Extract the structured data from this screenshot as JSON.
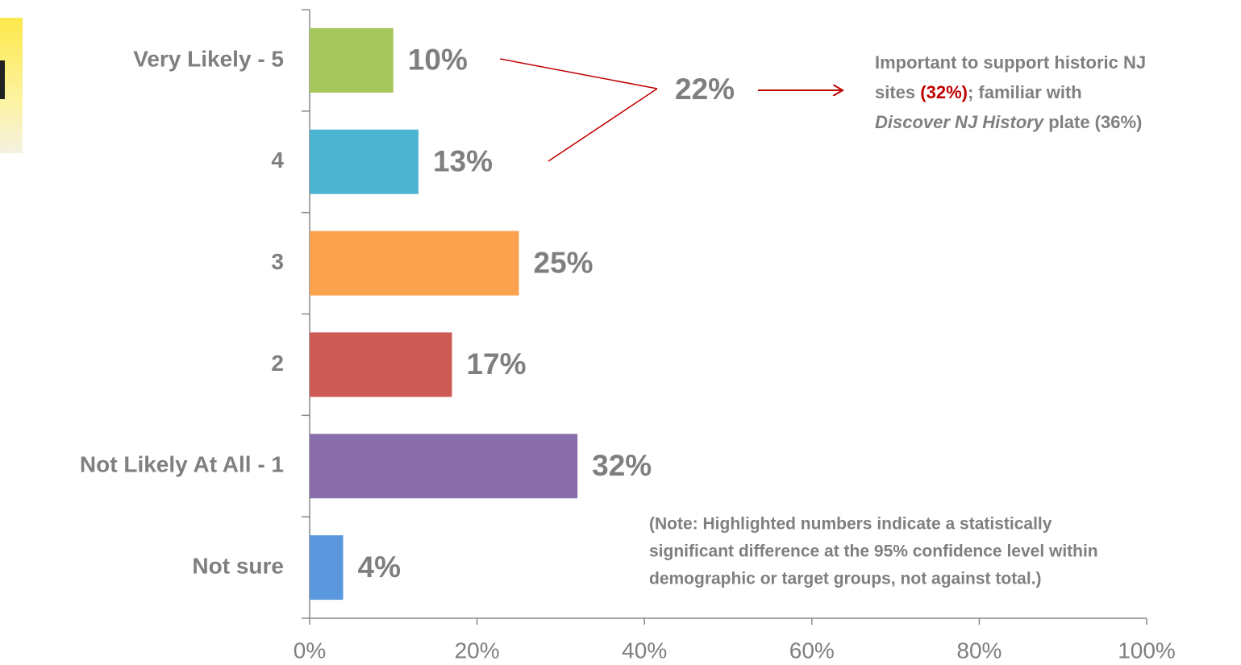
{
  "chart_data": {
    "type": "hbar",
    "categories": [
      "Very Likely - 5",
      "4",
      "3",
      "2",
      "Not Likely At All - 1",
      "Not sure"
    ],
    "values": [
      10,
      13,
      25,
      17,
      32,
      4
    ],
    "value_labels": [
      "10%",
      "13%",
      "25%",
      "17%",
      "32%",
      "4%"
    ],
    "colors": [
      "#a6c75e",
      "#4db5d2",
      "#fba24f",
      "#cd5a54",
      "#8a6dab",
      "#5b97dd"
    ],
    "xlim": [
      0,
      100
    ],
    "xticks": [
      {
        "value": 0,
        "label": "0%"
      },
      {
        "value": 20,
        "label": "20%"
      },
      {
        "value": 40,
        "label": "40%"
      },
      {
        "value": 60,
        "label": "60%"
      },
      {
        "value": 80,
        "label": "80%"
      },
      {
        "value": 100,
        "label": "100%"
      }
    ],
    "callout": "22%",
    "callout_detail": [
      [
        "Important to support historic NJ"
      ],
      [
        "sites ",
        "(32%)",
        "; familiar with"
      ],
      [
        "Discover NJ History",
        " plate (36%)"
      ]
    ],
    "note": [
      "(Note: Highlighted numbers indicate a statistically",
      "significant difference at the 95% confidence level within",
      "demographic or target groups, not against total.)"
    ]
  }
}
